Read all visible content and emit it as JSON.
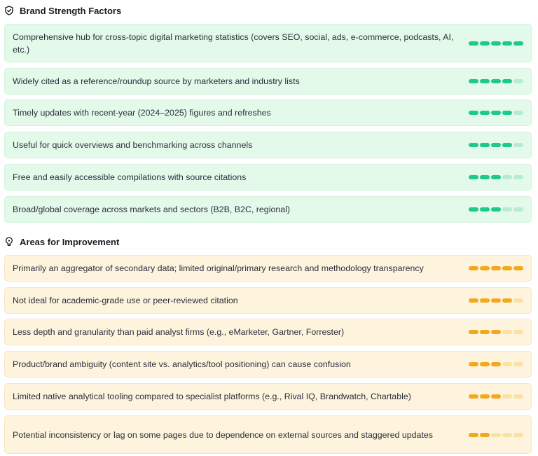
{
  "strengths": {
    "title": "Brand Strength Factors",
    "icon": "shield-check-icon",
    "color": "#1dc98b",
    "items": [
      {
        "label": "Comprehensive hub for cross-topic digital marketing statistics (covers SEO, social, ads, e-commerce, podcasts, AI, etc.)",
        "score": 5
      },
      {
        "label": "Widely cited as a reference/roundup source by marketers and industry lists",
        "score": 4
      },
      {
        "label": "Timely updates with recent-year (2024–2025) figures and refreshes",
        "score": 4
      },
      {
        "label": "Useful for quick overviews and benchmarking across channels",
        "score": 4
      },
      {
        "label": "Free and easily accessible compilations with source citations",
        "score": 3
      },
      {
        "label": "Broad/global coverage across markets and sectors (B2B, B2C, regional)",
        "score": 3
      }
    ]
  },
  "improvements": {
    "title": "Areas for Improvement",
    "icon": "lightbulb-icon",
    "color": "#f2a91f",
    "items": [
      {
        "label": "Primarily an aggregator of secondary data; limited original/primary research and methodology transparency",
        "score": 5
      },
      {
        "label": "Not ideal for academic-grade use or peer-reviewed citation",
        "score": 4
      },
      {
        "label": "Less depth and granularity than paid analyst firms (e.g., eMarketer, Gartner, Forrester)",
        "score": 3
      },
      {
        "label": "Product/brand ambiguity (content site vs. analytics/tool positioning) can cause confusion",
        "score": 3
      },
      {
        "label": "Limited native analytical tooling compared to specialist platforms (e.g., Rival IQ, Brandwatch, Chartable)",
        "score": 3
      },
      {
        "label": "Potential inconsistency or lag on some pages due to dependence on external sources and staggered updates",
        "score": 2
      }
    ],
    "max_score": 5
  }
}
